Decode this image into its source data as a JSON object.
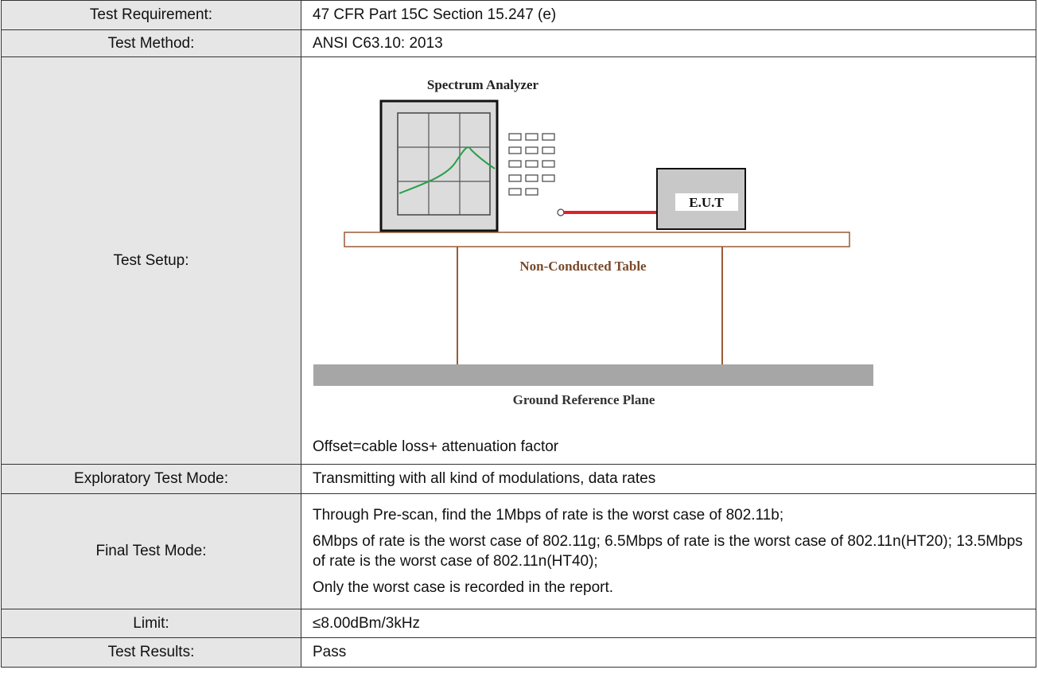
{
  "table": {
    "rows": [
      {
        "label": "Test Requirement:",
        "value": "47 CFR Part 15C Section 15.247 (e)"
      },
      {
        "label": "Test Method:",
        "value": "ANSI C63.10: 2013"
      },
      {
        "label": "Test Setup:",
        "value": "Offset=cable loss+ attenuation factor",
        "diagram": {
          "analyzer": "Spectrum Analyzer",
          "eut": "E.U.T",
          "table": "Non-Conducted Table",
          "ground": "Ground Reference Plane"
        }
      },
      {
        "label": "Exploratory Test Mode:",
        "value": "Transmitting with all kind of modulations, data rates"
      },
      {
        "label": "Final Test Mode:",
        "values": [
          "Through Pre-scan, find the 1Mbps of rate is the worst case of 802.11b;",
          "6Mbps of rate is the worst case of 802.11g; 6.5Mbps of rate is the worst case of 802.11n(HT20); 13.5Mbps of rate is the worst case of 802.11n(HT40);",
          "Only the worst case is recorded in the report."
        ]
      },
      {
        "label": "Limit:",
        "value": "≤8.00dBm/3kHz"
      },
      {
        "label": "Test Results:",
        "value": "Pass"
      }
    ]
  }
}
